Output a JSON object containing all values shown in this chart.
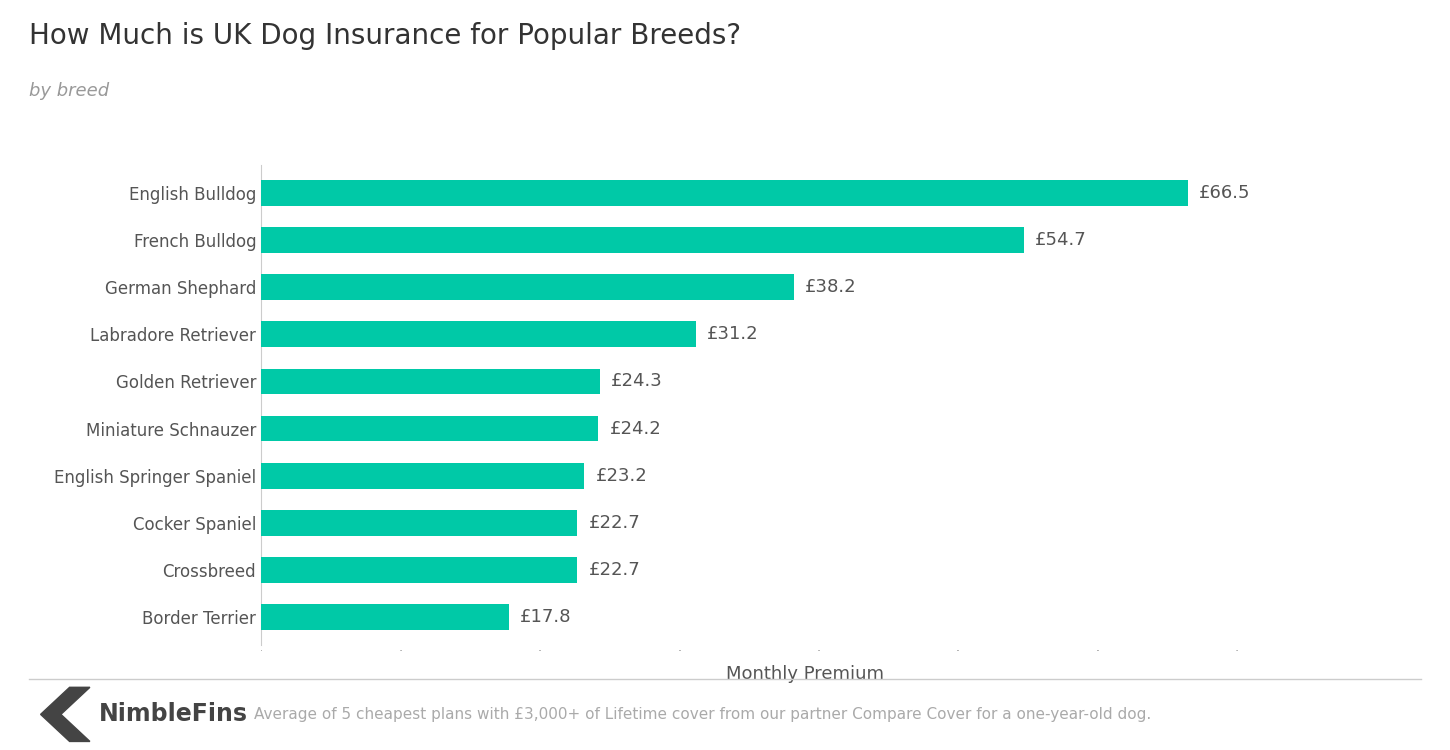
{
  "title": "How Much is UK Dog Insurance for Popular Breeds?",
  "subtitle": "by breed",
  "xlabel": "Monthly Premium",
  "footer_brand": "NimbleFins",
  "footer_note": "Average of 5 cheapest plans with £3,000+ of Lifetime cover from our partner Compare Cover for a one-year-old dog.",
  "categories": [
    "English Bulldog",
    "French Bulldog",
    "German Shephard",
    "Labradore Retriever",
    "Golden Retriever",
    "Miniature Schnauzer",
    "English Springer Spaniel",
    "Cocker Spaniel",
    "Crossbreed",
    "Border Terrier"
  ],
  "values": [
    66.5,
    54.7,
    38.2,
    31.2,
    24.3,
    24.2,
    23.2,
    22.7,
    22.7,
    17.8
  ],
  "bar_color": "#00C9A7",
  "label_color": "#555555",
  "title_color": "#333333",
  "subtitle_color": "#999999",
  "xlabel_color": "#555555",
  "background_color": "#ffffff",
  "bar_height": 0.55,
  "xlim": [
    0,
    78
  ],
  "title_fontsize": 20,
  "subtitle_fontsize": 13,
  "label_fontsize": 13,
  "tick_fontsize": 12,
  "xlabel_fontsize": 13,
  "footer_fontsize": 11,
  "brand_fontsize": 17
}
